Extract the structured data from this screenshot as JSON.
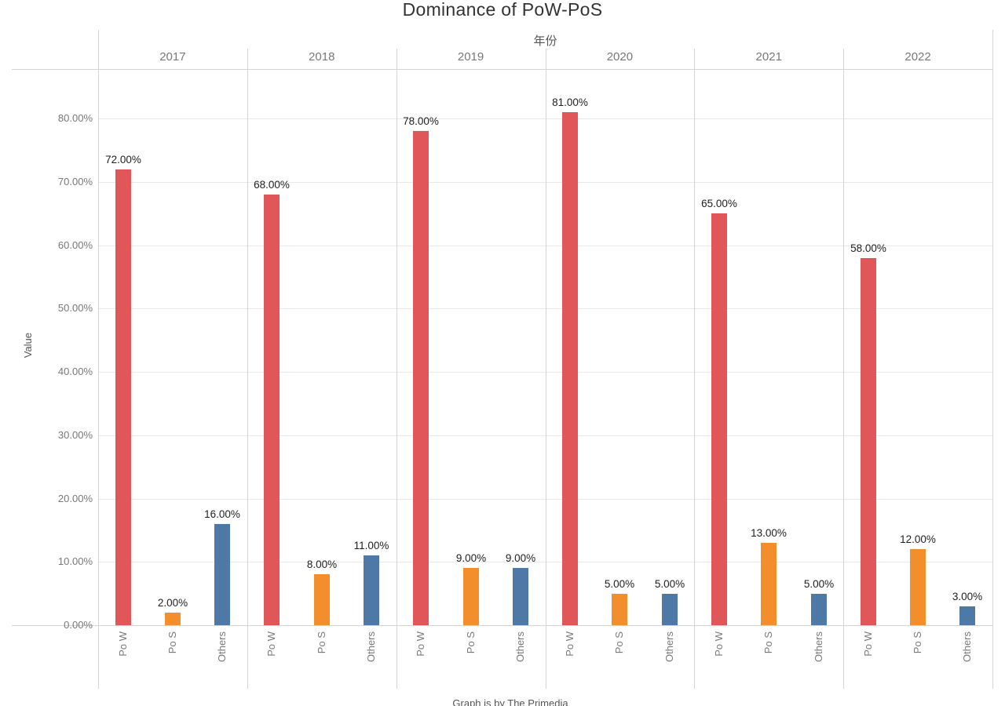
{
  "title": "Dominance of PoW-PoS",
  "caption": "Graph is by The Primedia",
  "chart_data": {
    "type": "bar",
    "title": "Dominance of PoW-PoS",
    "top_axis_label": "年份",
    "ylabel": "Value",
    "categories": [
      "2017",
      "2018",
      "2019",
      "2020",
      "2021",
      "2022"
    ],
    "bar_categories": [
      "Po W",
      "Po S",
      "Others"
    ],
    "series": [
      {
        "name": "Po W",
        "color": "#e15759",
        "values": [
          72,
          68,
          78,
          81,
          65,
          58
        ]
      },
      {
        "name": "Po S",
        "color": "#f28e2b",
        "values": [
          2,
          8,
          9,
          5,
          13,
          12
        ]
      },
      {
        "name": "Others",
        "color": "#4e79a7",
        "values": [
          16,
          11,
          9,
          5,
          5,
          3
        ]
      }
    ],
    "value_label_suffix": "%",
    "value_label_decimals": 2,
    "yticks": [
      0,
      10,
      20,
      30,
      40,
      50,
      60,
      70,
      80
    ],
    "ytick_labels": [
      "0.00%",
      "10.00%",
      "20.00%",
      "30.00%",
      "40.00%",
      "50.00%",
      "60.00%",
      "70.00%",
      "80.00%"
    ],
    "ylim": [
      0,
      87.8
    ],
    "grid": true,
    "legend": "none"
  },
  "colors": {
    "background": "#ffffff",
    "frame_line": "#d4d4d4",
    "gridline": "#e9e9e9",
    "tick_text": "#787878",
    "axis_title_text": "#555555",
    "title_text": "#333333",
    "bar_label_text": "#1e1e1e"
  }
}
